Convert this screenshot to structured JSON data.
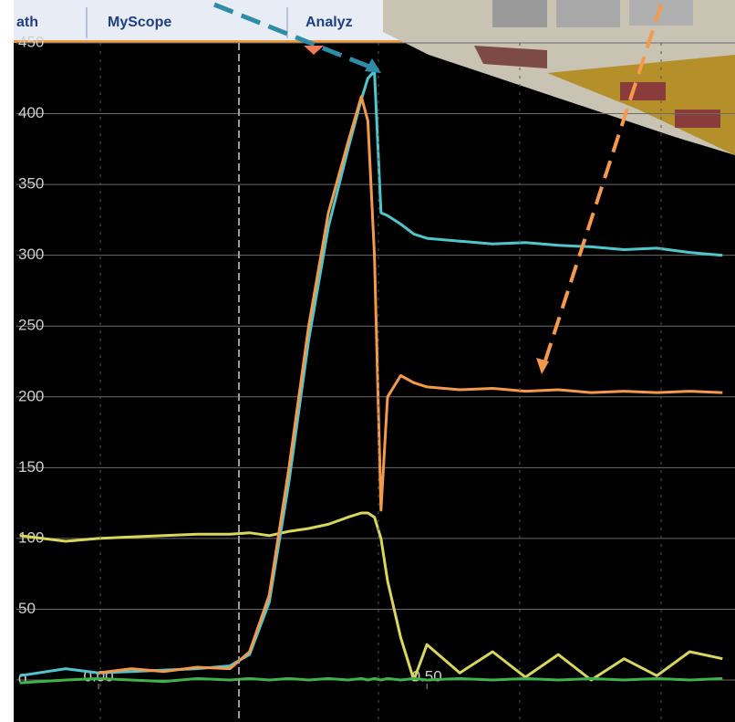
{
  "tabs": [
    "ath",
    "MyScope",
    "Analyz"
  ],
  "chart_data": {
    "type": "line",
    "x": [
      -0.12,
      -0.05,
      0,
      0.05,
      0.1,
      0.15,
      0.2,
      0.23,
      0.26,
      0.29,
      0.32,
      0.35,
      0.38,
      0.4,
      0.41,
      0.42,
      0.43,
      0.44,
      0.46,
      0.48,
      0.5,
      0.55,
      0.6,
      0.65,
      0.7,
      0.75,
      0.8,
      0.85,
      0.9,
      0.95
    ],
    "series": [
      {
        "color": "#d9d65a",
        "values": [
          102,
          98,
          100,
          101,
          102,
          103,
          103,
          104,
          102,
          105,
          107,
          110,
          115,
          118,
          118,
          115,
          100,
          70,
          30,
          0,
          25,
          5,
          20,
          2,
          18,
          0,
          15,
          3,
          20,
          15
        ]
      },
      {
        "color": "#3fb34a",
        "values": [
          -2,
          0,
          1,
          0,
          -1,
          1,
          0,
          1,
          0,
          1,
          0,
          1,
          0,
          1,
          0,
          1,
          0,
          1,
          0,
          1,
          0,
          1,
          0,
          1,
          0,
          1,
          0,
          1,
          0,
          1
        ]
      },
      {
        "color": "#4fc6cc",
        "values": [
          3,
          8,
          5,
          6,
          7,
          8,
          10,
          18,
          55,
          140,
          240,
          320,
          375,
          410,
          425,
          430,
          330,
          328,
          322,
          315,
          312,
          310,
          308,
          309,
          307,
          306,
          304,
          305,
          302,
          300
        ]
      },
      {
        "color": "#f5994a",
        "values": [
          null,
          null,
          5,
          8,
          6,
          9,
          8,
          20,
          60,
          150,
          250,
          330,
          380,
          412,
          395,
          300,
          120,
          200,
          215,
          210,
          207,
          205,
          206,
          204,
          205,
          203,
          204,
          203,
          204,
          203
        ]
      }
    ],
    "xlim": [
      -0.125,
      0.969
    ],
    "ylim": [
      0,
      450
    ],
    "xticks": [
      {
        "value": 0,
        "label": "0.00"
      },
      {
        "value": 0.5,
        "label": "0.50"
      }
    ],
    "yticks": [
      0,
      50,
      100,
      150,
      200,
      250,
      300,
      350,
      400,
      450
    ],
    "grid": true
  }
}
